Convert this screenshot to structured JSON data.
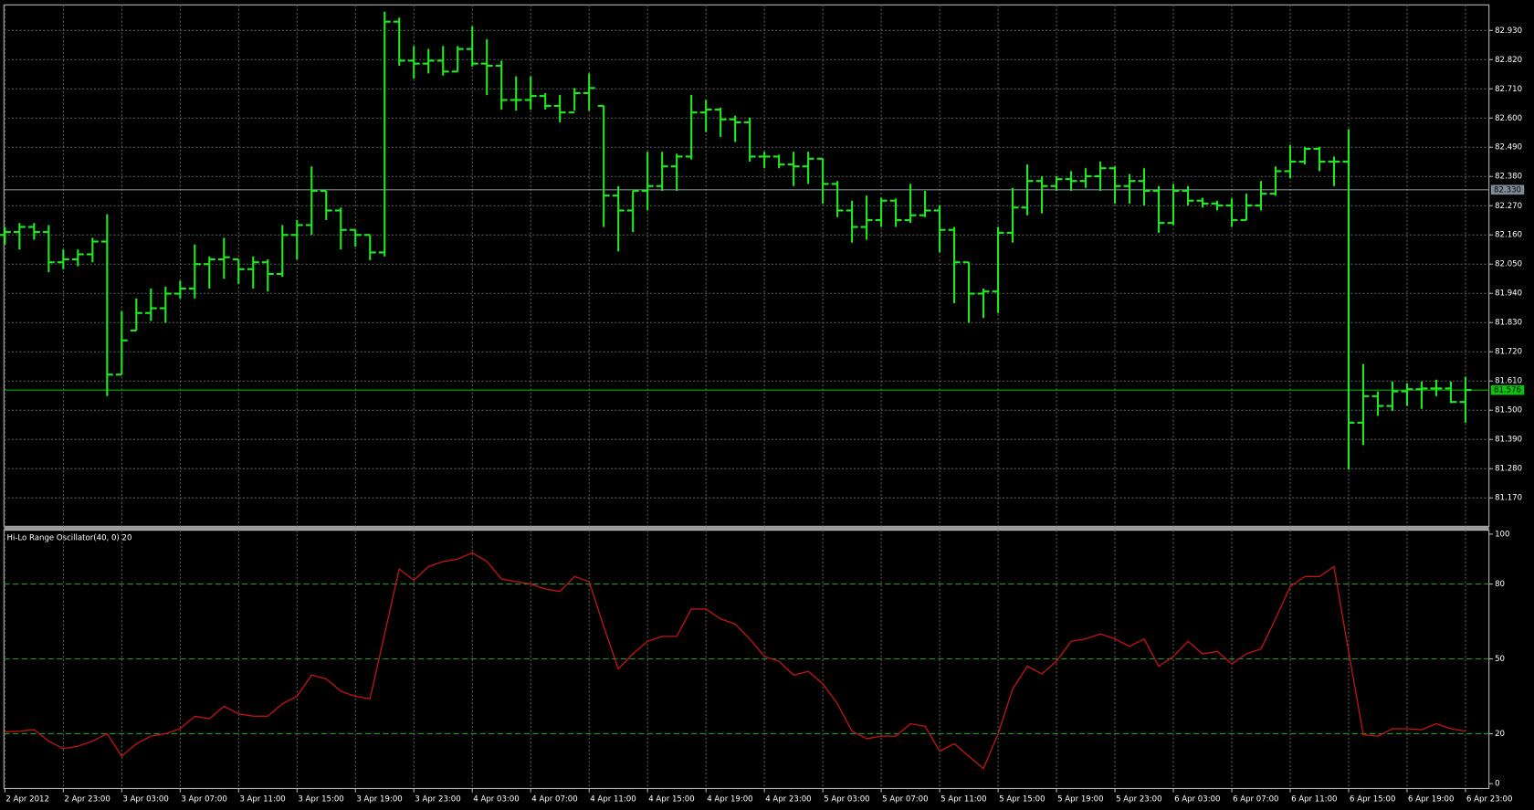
{
  "chart_data": [
    {
      "type": "ohlc",
      "color": "#22e622",
      "grid": true,
      "categories": [
        "2 Apr 2012",
        null,
        null,
        null,
        "2 Apr 23:00",
        null,
        null,
        null,
        "3 Apr 03:00",
        null,
        null,
        null,
        "3 Apr 07:00",
        null,
        null,
        null,
        "3 Apr 11:00",
        null,
        null,
        null,
        "3 Apr 15:00",
        null,
        null,
        null,
        "3 Apr 19:00",
        null,
        null,
        null,
        "3 Apr 23:00",
        null,
        null,
        null,
        "4 Apr 03:00",
        null,
        null,
        null,
        "4 Apr 07:00",
        null,
        null,
        null,
        "4 Apr 11:00",
        null,
        null,
        null,
        "4 Apr 15:00",
        null,
        null,
        null,
        "4 Apr 19:00",
        null,
        null,
        null,
        "4 Apr 23:00",
        null,
        null,
        null,
        "5 Apr 03:00",
        null,
        null,
        null,
        "5 Apr 07:00",
        null,
        null,
        null,
        "5 Apr 11:00",
        null,
        null,
        null,
        "5 Apr 15:00",
        null,
        null,
        null,
        "5 Apr 19:00",
        null,
        null,
        null,
        "5 Apr 23:00",
        null,
        null,
        null,
        "6 Apr 03:00",
        null,
        null,
        null,
        "6 Apr 07:00",
        null,
        null,
        null,
        "6 Apr 11:00",
        null,
        null,
        null,
        "6 Apr 15:00",
        null,
        null,
        null,
        "6 Apr 19:00",
        null,
        null,
        null,
        "6 Apr 23:00"
      ],
      "open": [
        82.16,
        82.171,
        82.19,
        82.171,
        82.057,
        82.068,
        82.087,
        82.135,
        81.634,
        81.8,
        81.866,
        81.884,
        81.939,
        81.958,
        82.05,
        82.068,
        82.068,
        82.031,
        82.057,
        82.013,
        82.16,
        82.197,
        82.326,
        82.252,
        82.179,
        82.16,
        82.094,
        82.963,
        82.816,
        82.805,
        82.816,
        82.775,
        82.86,
        82.805,
        82.797,
        82.668,
        82.668,
        82.683,
        82.646,
        82.621,
        82.694,
        82.646,
        82.308,
        82.252,
        82.326,
        82.344,
        82.418,
        82.455,
        82.621,
        82.632,
        82.595,
        82.584,
        82.455,
        82.455,
        82.425,
        82.418,
        82.447,
        82.352,
        82.252,
        82.19,
        82.216,
        82.289,
        82.216,
        82.234,
        82.252,
        82.179,
        82.057,
        81.939,
        81.947,
        82.168,
        82.263,
        82.363,
        82.344,
        82.37,
        82.363,
        82.381,
        82.411,
        82.344,
        82.363,
        82.326,
        82.205,
        82.326,
        82.289,
        82.278,
        82.271,
        82.216,
        82.271,
        82.315,
        82.4,
        82.436,
        82.484,
        82.436,
        82.436,
        81.453,
        81.553,
        81.516,
        81.571,
        81.579,
        81.582,
        81.582,
        81.531
      ],
      "high": [
        82.19,
        82.205,
        82.205,
        82.197,
        82.105,
        82.105,
        82.149,
        82.238,
        81.873,
        81.921,
        81.958,
        81.965,
        81.987,
        82.124,
        82.079,
        82.149,
        82.068,
        82.079,
        82.068,
        82.197,
        82.216,
        82.418,
        82.326,
        82.263,
        82.179,
        82.16,
        83.0,
        82.978,
        82.871,
        82.86,
        82.871,
        82.871,
        82.945,
        82.897,
        82.816,
        82.757,
        82.757,
        82.694,
        82.687,
        82.713,
        82.768,
        82.646,
        82.344,
        82.326,
        82.473,
        82.473,
        82.466,
        82.687,
        82.668,
        82.639,
        82.609,
        82.602,
        82.473,
        82.462,
        82.473,
        82.473,
        82.447,
        82.363,
        82.289,
        82.308,
        82.3,
        82.297,
        82.352,
        82.326,
        82.271,
        82.19,
        82.057,
        81.958,
        82.19,
        82.337,
        82.425,
        82.381,
        82.381,
        82.4,
        82.411,
        82.436,
        82.418,
        82.389,
        82.411,
        82.344,
        82.352,
        82.344,
        82.3,
        82.289,
        82.297,
        82.315,
        82.363,
        82.418,
        82.499,
        82.492,
        82.492,
        82.455,
        82.558,
        81.674,
        81.571,
        81.608,
        81.601,
        81.608,
        81.615,
        81.608,
        81.626
      ],
      "low": [
        82.124,
        82.105,
        82.142,
        82.02,
        82.031,
        82.042,
        82.057,
        81.553,
        81.634,
        81.8,
        81.836,
        81.829,
        81.921,
        81.921,
        81.958,
        81.995,
        81.976,
        81.958,
        81.947,
        82.002,
        82.068,
        82.16,
        82.216,
        82.105,
        82.116,
        82.065,
        82.079,
        82.797,
        82.749,
        82.768,
        82.76,
        82.775,
        82.794,
        82.687,
        82.632,
        82.628,
        82.632,
        82.632,
        82.584,
        82.628,
        82.628,
        82.19,
        82.098,
        82.171,
        82.252,
        82.326,
        82.326,
        82.444,
        82.547,
        82.529,
        82.51,
        82.436,
        82.411,
        82.411,
        82.344,
        82.352,
        82.278,
        82.227,
        82.131,
        82.142,
        82.19,
        82.19,
        82.205,
        82.227,
        82.094,
        81.903,
        81.829,
        81.847,
        81.866,
        82.131,
        82.234,
        82.241,
        82.326,
        82.326,
        82.337,
        82.326,
        82.278,
        82.278,
        82.271,
        82.168,
        82.197,
        82.271,
        82.263,
        82.252,
        82.19,
        82.216,
        82.252,
        82.308,
        82.374,
        82.425,
        82.4,
        82.344,
        81.277,
        81.369,
        81.479,
        81.498,
        81.516,
        81.505,
        81.553,
        81.527,
        81.453
      ],
      "close": [
        82.171,
        82.19,
        82.171,
        82.057,
        82.068,
        82.087,
        82.135,
        81.634,
        81.763,
        81.866,
        81.884,
        81.939,
        81.958,
        82.05,
        82.068,
        82.076,
        82.031,
        82.057,
        82.013,
        82.16,
        82.197,
        82.326,
        82.252,
        82.179,
        82.16,
        82.094,
        82.963,
        82.816,
        82.805,
        82.816,
        82.775,
        82.86,
        82.805,
        82.797,
        82.668,
        82.668,
        82.683,
        82.646,
        82.621,
        82.694,
        82.713,
        82.308,
        82.252,
        82.326,
        82.344,
        82.418,
        82.455,
        82.621,
        82.632,
        82.595,
        82.584,
        82.455,
        82.455,
        82.425,
        82.418,
        82.447,
        82.352,
        82.252,
        82.19,
        82.216,
        82.289,
        82.216,
        82.234,
        82.252,
        82.179,
        82.057,
        81.939,
        81.947,
        82.168,
        82.263,
        82.363,
        82.344,
        82.37,
        82.363,
        82.381,
        82.411,
        82.344,
        82.363,
        82.326,
        82.205,
        82.326,
        82.289,
        82.278,
        82.271,
        82.216,
        82.271,
        82.315,
        82.4,
        82.436,
        82.484,
        82.436,
        82.436,
        81.453,
        81.553,
        81.516,
        81.571,
        81.579,
        81.582,
        81.582,
        81.531,
        81.576
      ],
      "ylim": [
        81.063,
        83.026
      ],
      "yticks": [
        {
          "value": 82.93,
          "label": "82.930"
        },
        {
          "value": 82.82,
          "label": "82.820"
        },
        {
          "value": 82.71,
          "label": "82.710"
        },
        {
          "value": 82.6,
          "label": "82.600"
        },
        {
          "value": 82.49,
          "label": "82.490"
        },
        {
          "value": 82.38,
          "label": "82.380"
        },
        {
          "value": 82.27,
          "label": "82.270"
        },
        {
          "value": 82.16,
          "label": "82.160"
        },
        {
          "value": 82.05,
          "label": "82.050"
        },
        {
          "value": 81.94,
          "label": "81.940"
        },
        {
          "value": 81.83,
          "label": "81.830"
        },
        {
          "value": 81.72,
          "label": "81.720"
        },
        {
          "value": 81.61,
          "label": "81.610"
        },
        {
          "value": 81.5,
          "label": "81.500"
        },
        {
          "value": 81.39,
          "label": "81.390"
        },
        {
          "value": 81.28,
          "label": "81.280"
        },
        {
          "value": 81.17,
          "label": "81.170"
        }
      ],
      "price_lines": [
        {
          "value": 82.33,
          "label": "82.330",
          "color": "#7d8a96"
        },
        {
          "value": 81.576,
          "color": "#10c010"
        }
      ]
    },
    {
      "type": "line",
      "title": "Hi-Lo Range Oscillator(40, 0) 20",
      "color": "#c81414",
      "grid": true,
      "values": [
        20.8,
        21,
        21.6,
        17,
        14,
        15,
        17,
        20,
        11,
        16,
        19,
        20,
        22,
        27,
        26,
        31,
        28,
        27,
        27,
        32,
        35,
        43.5,
        42,
        37,
        35,
        34,
        60,
        86,
        81.5,
        87,
        89,
        90,
        92.5,
        89,
        82,
        81,
        80,
        78,
        77,
        83,
        81,
        63,
        46,
        52,
        57,
        59,
        59,
        70,
        70,
        66,
        64,
        58,
        51,
        49,
        43.5,
        45,
        40,
        32,
        21,
        18,
        19,
        19,
        24,
        23,
        13,
        16,
        11,
        6,
        20,
        38,
        47,
        44,
        49,
        57,
        58,
        60,
        58,
        55,
        58,
        47,
        51,
        57,
        52,
        53,
        48,
        52,
        54,
        66,
        79,
        83,
        83,
        87,
        53,
        19.6,
        19,
        22,
        22,
        21.6,
        24,
        22,
        21
      ],
      "ylim": [
        0,
        100
      ],
      "yticks": [
        100,
        80,
        50,
        20,
        0
      ],
      "levels": [
        80,
        50,
        20
      ],
      "level_color": "#1f9a1f"
    }
  ]
}
